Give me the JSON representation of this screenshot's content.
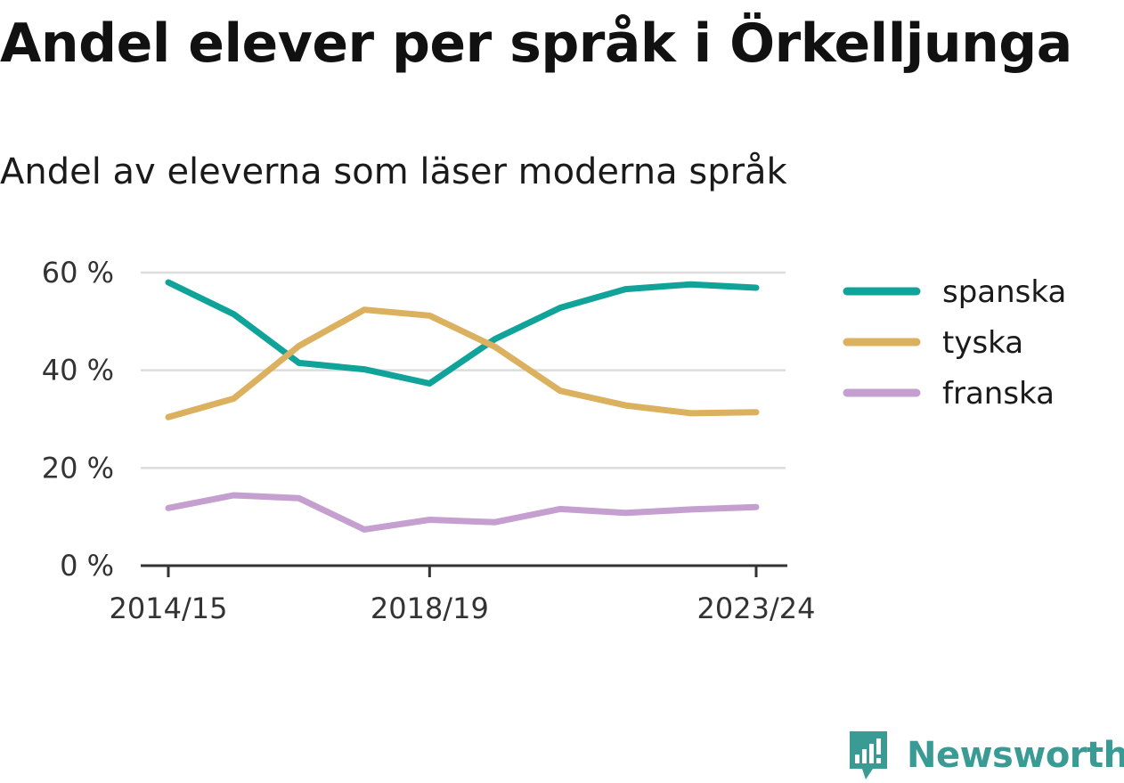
{
  "title": "Andel elever per språk i Örkelljunga",
  "subtitle": "Andel av eleverna som läser moderna språk",
  "brand": "Newsworthy",
  "chart_data": {
    "type": "line",
    "x": [
      "2014/15",
      "2015/16",
      "2016/17",
      "2017/18",
      "2018/19",
      "2019/20",
      "2020/21",
      "2021/22",
      "2022/23",
      "2023/24"
    ],
    "x_tick_labels": [
      "2014/15",
      "2018/19",
      "2023/24"
    ],
    "y_ticks": [
      0,
      20,
      40,
      60
    ],
    "y_tick_labels": [
      "0 %",
      "20 %",
      "40 %",
      "60 %"
    ],
    "ylim": [
      0,
      60
    ],
    "grid": true,
    "legend_position": "right",
    "series": [
      {
        "name": "spanska",
        "color": "#0fa39a",
        "values": [
          58.0,
          51.5,
          41.5,
          40.2,
          37.3,
          46.4,
          52.8,
          56.6,
          57.6,
          56.9
        ]
      },
      {
        "name": "tyska",
        "color": "#dbb05e",
        "values": [
          30.4,
          34.2,
          45.0,
          52.4,
          51.2,
          44.8,
          35.8,
          32.8,
          31.2,
          31.4
        ]
      },
      {
        "name": "franska",
        "color": "#c49fcf",
        "values": [
          11.8,
          14.4,
          13.8,
          7.4,
          9.4,
          8.9,
          11.6,
          10.8,
          11.5,
          12.0
        ]
      }
    ]
  }
}
